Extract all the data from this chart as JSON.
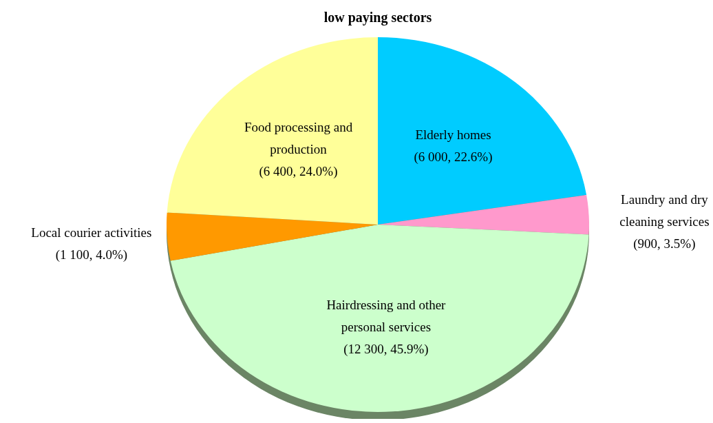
{
  "chart_data": {
    "type": "pie",
    "title": "low paying sectors",
    "categories": [
      "Elderly homes",
      "Laundry and dry cleaning services",
      "Hairdressing and other personal services",
      "Local courier activities",
      "Food processing and production"
    ],
    "values": [
      6000,
      900,
      12300,
      1100,
      6400
    ],
    "value_labels": [
      "(6 000, 22.6%)",
      "(900, 3.5%)",
      "(12 300, 45.9%)",
      "(1 100, 4.0%)",
      "(6 400, 24.0%)"
    ],
    "colors": [
      "#00ccff",
      "#ff99cc",
      "#ccffcc",
      "#ff9900",
      "#ffff99"
    ]
  }
}
